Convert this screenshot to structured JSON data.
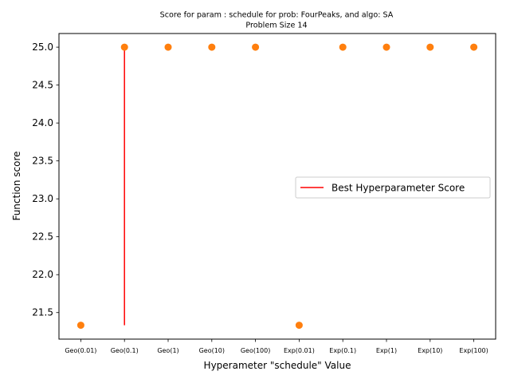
{
  "chart_data": {
    "type": "scatter",
    "title_line1": "Score for param : schedule for prob: FourPeaks, and algo: SA",
    "title_line2": "Problem Size 14",
    "xlabel": "Hyperameter \"schedule\" Value",
    "ylabel": "Function score",
    "categories": [
      "Geo(0.01)",
      "Geo(0.1)",
      "Geo(1)",
      "Geo(10)",
      "Geo(100)",
      "Exp(0.01)",
      "Exp(0.1)",
      "Exp(1)",
      "Exp(10)",
      "Exp(100)"
    ],
    "values": [
      21.333,
      25.0,
      25.0,
      25.0,
      25.0,
      21.333,
      25.0,
      25.0,
      25.0,
      25.0
    ],
    "ylim": [
      21.15,
      25.18
    ],
    "yticks": [
      21.5,
      22.0,
      22.5,
      23.0,
      23.5,
      24.0,
      24.5,
      25.0
    ],
    "ytick_labels": [
      "21.5",
      "22.0",
      "22.5",
      "23.0",
      "23.5",
      "24.0",
      "24.5",
      "25.0"
    ],
    "point_color": "#ff7f0e",
    "best_line": {
      "label": "Best Hyperparameter Score",
      "category": "Geo(0.1)",
      "y_from": 21.333,
      "y_to": 25.0,
      "color": "#ff0000"
    },
    "legend_placement": "center-right",
    "grid": false
  }
}
